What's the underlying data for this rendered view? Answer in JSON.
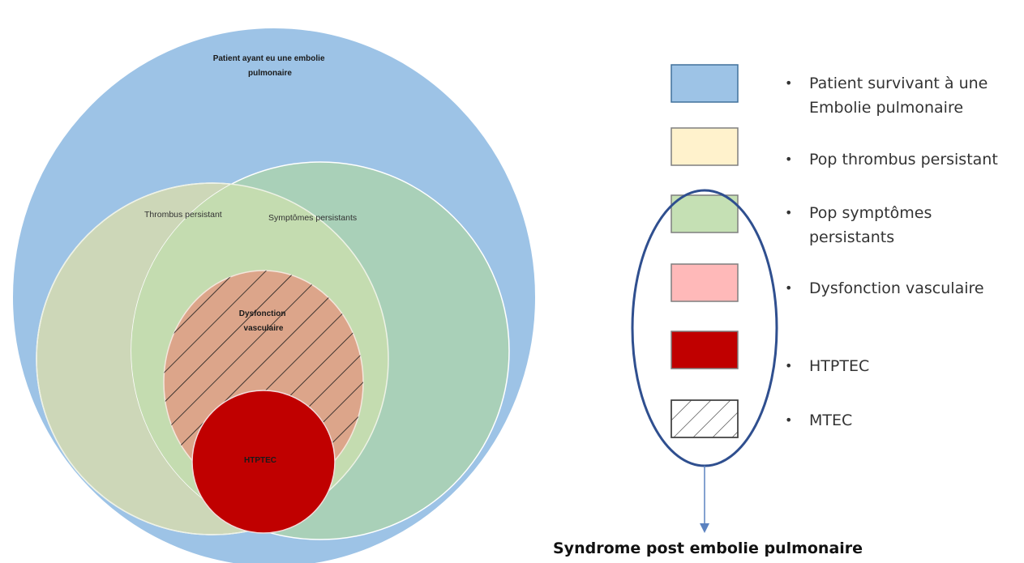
{
  "venn": {
    "outer_label_line1": "Patient ayant eu une embolie",
    "outer_label_line2": "pulmonaire",
    "thrombus_label": "Thrombus persistant",
    "symptoms_label": "Symptômes persistants",
    "dysfonction_label_line1": "Dysfonction",
    "dysfonction_label_line2": "vasculaire",
    "htptec_label": "HTPTEC"
  },
  "legend": {
    "items": [
      {
        "lines": [
          "Patient survivant à une",
          "Embolie pulmonaire"
        ],
        "fill": "#9dc3e6",
        "stroke": "#41719c",
        "hatched": false
      },
      {
        "lines": [
          "Pop thrombus persistant"
        ],
        "fill": "#fff2cc",
        "stroke": "#7f7f7f",
        "hatched": false
      },
      {
        "lines": [
          "Pop symptômes",
          "persistants"
        ],
        "fill": "#c5e0b4",
        "stroke": "#7f7f7f",
        "hatched": false
      },
      {
        "lines": [
          "Dysfonction vasculaire"
        ],
        "fill": "#ffb9b9",
        "stroke": "#7f7f7f",
        "hatched": false
      },
      {
        "lines": [
          "HTPTEC"
        ],
        "fill": "#c00000",
        "stroke": "#7f7f7f",
        "hatched": false
      },
      {
        "lines": [
          "MTEC"
        ],
        "fill": "#ffffff",
        "stroke": "#404040",
        "hatched": true
      }
    ],
    "bullet": "•"
  },
  "caption": "Syndrome post embolie pulmonaire",
  "colors": {
    "outer": "#9dc3e6",
    "thrombus": "#cdd7b8",
    "symptoms": "#a9d0b8",
    "overlap": "#c4dcb0",
    "dysfonction": "#dca58a",
    "htptec": "#c00000",
    "ellipse_border": "#2f4f8f",
    "arrow": "#5b82c0"
  }
}
